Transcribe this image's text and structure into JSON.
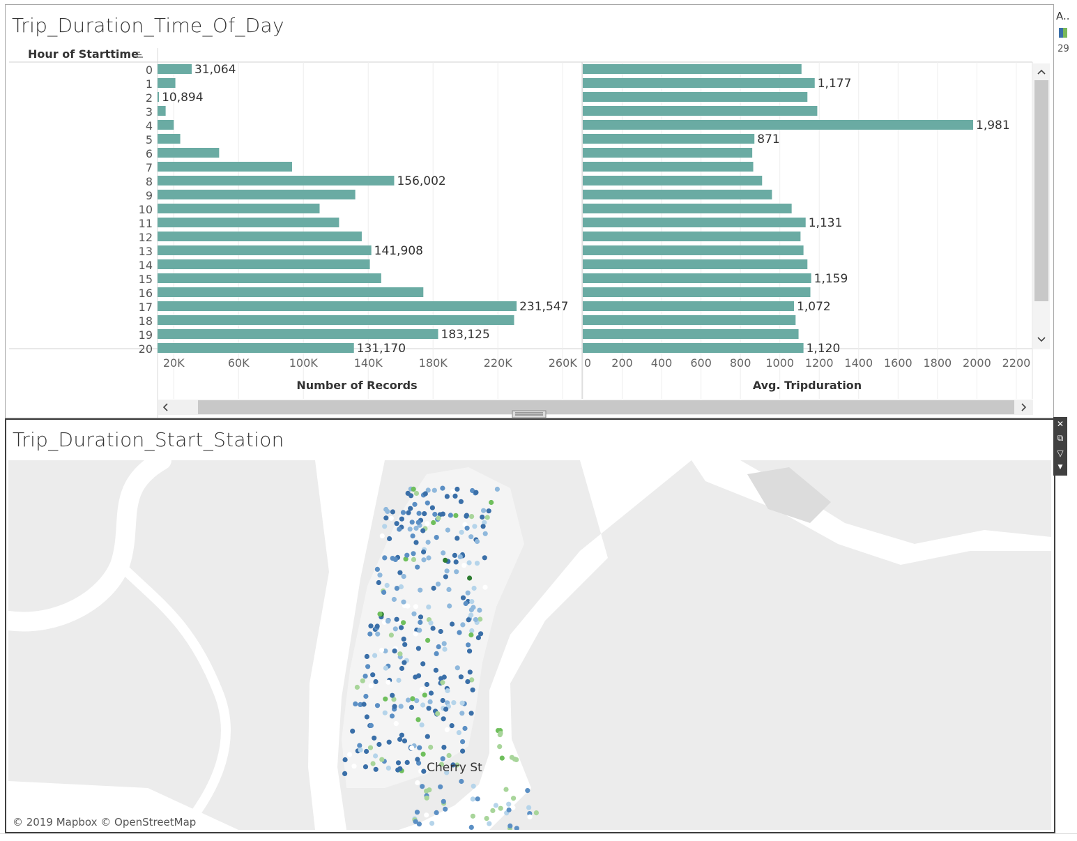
{
  "top_view": {
    "title": "Trip_Duration_Time_Of_Day",
    "row_header": "Hour of Starttime",
    "sort_icon": "sort-descending-icon",
    "left_axis_title": "Number of Records",
    "right_axis_title": "Avg. Tripduration"
  },
  "bottom_view": {
    "title": "Trip_Duration_Start_Station",
    "place_label": "Cherry St",
    "attribution": "© 2019 Mapbox © OpenStreetMap"
  },
  "legend": {
    "abbr": "A..",
    "number": "29",
    "swatch_colors": [
      "#3a6fa8",
      "#79b85a"
    ]
  },
  "toolbar": {
    "icons": [
      "close-icon",
      "popout-icon",
      "filter-icon",
      "dropdown-icon"
    ]
  },
  "colors": {
    "bar": "#6aaba3",
    "background": "#ffffff",
    "map_land": "#ececec",
    "map_water": "#ffffff",
    "station_low": "#3a6fa8",
    "station_mid": "#b5d4ea",
    "station_high": "#2e7d32"
  },
  "chart_data": [
    {
      "type": "bar",
      "orientation": "horizontal",
      "categories": [
        "0",
        "1",
        "2",
        "3",
        "4",
        "5",
        "6",
        "7",
        "8",
        "9",
        "10",
        "11",
        "12",
        "13",
        "14",
        "15",
        "16",
        "17",
        "18",
        "19",
        "20"
      ],
      "values": [
        31064,
        21000,
        10894,
        15000,
        20000,
        24000,
        48000,
        93000,
        156002,
        132000,
        110000,
        122000,
        136000,
        141908,
        141000,
        148000,
        174000,
        231547,
        230000,
        183125,
        131170
      ],
      "data_labels": {
        "0": "31,064",
        "2": "10,894",
        "8": "156,002",
        "13": "141,908",
        "17": "231,547",
        "19": "183,125",
        "20": "131,170"
      },
      "xlabel": "Number of Records",
      "ylabel": "Hour of Starttime",
      "xlim": [
        0,
        270000
      ],
      "x_ticks": [
        20000,
        60000,
        100000,
        140000,
        180000,
        220000,
        260000
      ],
      "x_tick_labels": [
        "20K",
        "60K",
        "100K",
        "140K",
        "180K",
        "220K",
        "260K"
      ],
      "grid": true
    },
    {
      "type": "bar",
      "orientation": "horizontal",
      "categories": [
        "0",
        "1",
        "2",
        "3",
        "4",
        "5",
        "6",
        "7",
        "8",
        "9",
        "10",
        "11",
        "12",
        "13",
        "14",
        "15",
        "16",
        "17",
        "18",
        "19",
        "20"
      ],
      "values": [
        1110,
        1177,
        1140,
        1190,
        1981,
        871,
        860,
        865,
        910,
        960,
        1060,
        1131,
        1105,
        1120,
        1140,
        1159,
        1155,
        1072,
        1080,
        1095,
        1120
      ],
      "data_labels": {
        "1": "1,177",
        "4": "1,981",
        "5": "871",
        "11": "1,131",
        "15": "1,159",
        "17": "1,072",
        "20": "1,120"
      },
      "xlabel": "Avg. Tripduration",
      "xlim": [
        0,
        2270
      ],
      "x_ticks": [
        0,
        200,
        400,
        600,
        800,
        1000,
        1200,
        1400,
        1600,
        1800,
        2000,
        2200
      ],
      "x_tick_labels": [
        "0",
        "200",
        "400",
        "600",
        "800",
        "1000",
        "1200",
        "1400",
        "1600",
        "1800",
        "2000",
        "2200"
      ],
      "grid": true
    }
  ]
}
